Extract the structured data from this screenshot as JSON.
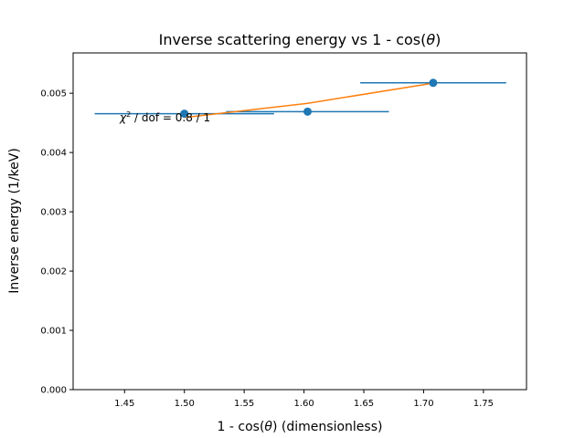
{
  "chart_data": {
    "type": "scatter",
    "title_prefix": "Inverse scattering energy vs 1 - cos(",
    "title_theta": "θ",
    "title_suffix": ")",
    "xlabel_prefix": "1 - cos(",
    "xlabel_theta": "θ",
    "xlabel_suffix": ") (dimensionless)",
    "ylabel": "Inverse energy (1/keV)",
    "xlim": [
      1.407,
      1.786
    ],
    "ylim": [
      0.0,
      0.00568
    ],
    "xticks": [
      1.45,
      1.5,
      1.55,
      1.6,
      1.65,
      1.7,
      1.75
    ],
    "xtick_labels": [
      "1.45",
      "1.50",
      "1.55",
      "1.60",
      "1.65",
      "1.70",
      "1.75"
    ],
    "yticks": [
      0.0,
      0.001,
      0.002,
      0.003,
      0.004,
      0.005
    ],
    "ytick_labels": [
      "0.000",
      "0.001",
      "0.002",
      "0.003",
      "0.004",
      "0.005"
    ],
    "grid": false,
    "data_color": "#1f77b4",
    "fit_color": "#ff7f0e",
    "points": [
      {
        "x": 1.5,
        "y": 0.004655,
        "xerr": 0.075
      },
      {
        "x": 1.603,
        "y": 0.00469,
        "xerr": 0.068
      },
      {
        "x": 1.708,
        "y": 0.005175,
        "xerr": 0.061
      }
    ],
    "fit_line": {
      "x": [
        1.5,
        1.603,
        1.708
      ],
      "y": [
        0.00459,
        0.00483,
        0.00517
      ]
    },
    "annotation": {
      "chi": "χ",
      "sup": "2",
      "rest": " / dof = 0.8 / 1",
      "x": 1.446,
      "y": 0.00459
    }
  }
}
